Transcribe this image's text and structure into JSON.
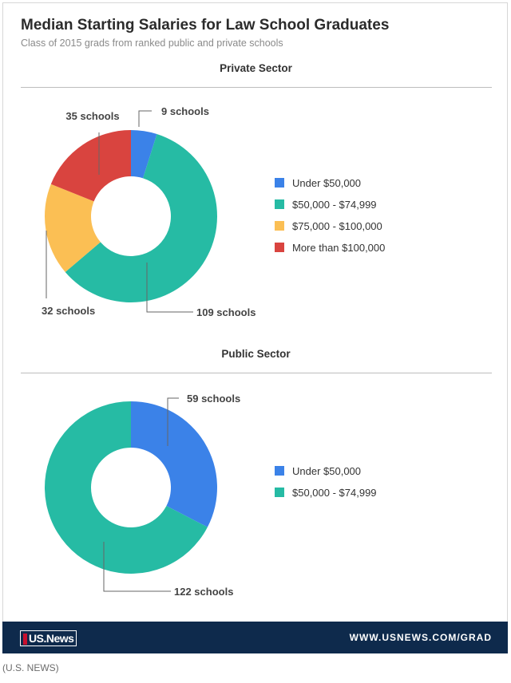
{
  "title": "Median Starting Salaries for Law School Graduates",
  "subtitle": "Class of 2015 grads from ranked public and private schools",
  "footer": {
    "logo_text": "US.News",
    "url": "WWW.USNEWS.COM/GRAD"
  },
  "credit": "(U.S. NEWS)",
  "colors": {
    "blue": "#3b82e8",
    "teal": "#26bba4",
    "yellow": "#fbbf54",
    "red": "#d9443f"
  },
  "chart_data": [
    {
      "type": "pie",
      "title": "Private Sector",
      "donut": true,
      "slices": [
        {
          "label": "Under $50,000",
          "value": 9,
          "data_label": "9 schools",
          "color": "#3b82e8"
        },
        {
          "label": "$50,000 - $74,999",
          "value": 109,
          "data_label": "109 schools",
          "color": "#26bba4"
        },
        {
          "label": "$75,000 - $100,000",
          "value": 32,
          "data_label": "32 schools",
          "color": "#fbbf54"
        },
        {
          "label": "More than $100,000",
          "value": 35,
          "data_label": "35 schools",
          "color": "#d9443f"
        }
      ],
      "legend_placement": "right"
    },
    {
      "type": "pie",
      "title": "Public Sector",
      "donut": true,
      "slices": [
        {
          "label": "Under $50,000",
          "value": 59,
          "data_label": "59 schools",
          "color": "#3b82e8"
        },
        {
          "label": "$50,000 - $74,999",
          "value": 122,
          "data_label": "122 schools",
          "color": "#26bba4"
        }
      ],
      "legend_placement": "right"
    }
  ]
}
